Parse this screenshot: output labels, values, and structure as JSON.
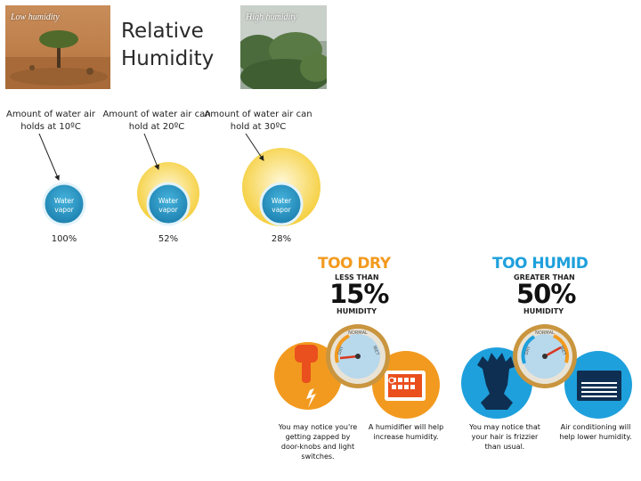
{
  "header": {
    "title_line1": "Relative",
    "title_line2": "Humidity",
    "low_photo_label": "Low humidity",
    "high_photo_label": "High humidity"
  },
  "comparison": [
    {
      "caption": "Amount of water air holds at 10ºC",
      "bubble_label_1": "Water",
      "bubble_label_2": "vapor",
      "percent": "100%"
    },
    {
      "caption": "Amount of water air can hold at 20ºC",
      "bubble_label_1": "Water",
      "bubble_label_2": "vapor",
      "percent": "52%"
    },
    {
      "caption": "Amount of water air can hold at 30ºC",
      "bubble_label_1": "Water",
      "bubble_label_2": "vapor",
      "percent": "28%"
    }
  ],
  "too_dry": {
    "heading": "TOO DRY",
    "qualifier": "LESS THAN",
    "value": "15%",
    "unit": "HUMIDITY",
    "gauge_labels": [
      "NORMAL",
      "DRY",
      "WET"
    ],
    "note_left": "You may notice you're getting zapped by door-knobs and light switches.",
    "note_right": "A humidifier will help increase humidity."
  },
  "too_humid": {
    "heading": "TOO HUMID",
    "qualifier": "GREATER THAN",
    "value": "50%",
    "unit": "HUMIDITY",
    "gauge_labels": [
      "NORMAL",
      "DRY",
      "WET"
    ],
    "note_left": "You may notice that your hair is frizzier than usual.",
    "note_right": "Air conditioning will help lower humidity."
  },
  "colors": {
    "dry_orange": "#f29a1f",
    "humid_blue": "#1ea0dc",
    "vapor_blue": "#1e8fbf",
    "air_yellow": "#f7d447",
    "gauge_gold": "#c9953e"
  }
}
